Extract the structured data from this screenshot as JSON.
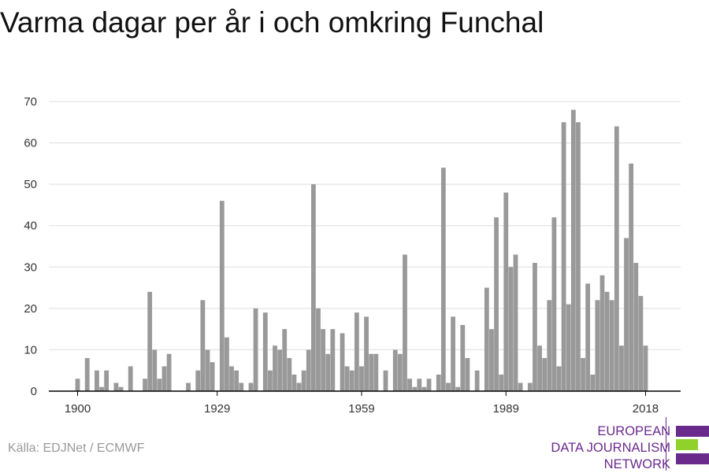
{
  "title": "Varma dagar per år i och omkring Funchal",
  "source": "Källa: EDJNet / ECMWF",
  "logo": {
    "lines": [
      "EUROPEAN",
      "DATA JOURNALISM",
      "NETWORK"
    ],
    "colors": {
      "purple": "#6a2a8c",
      "green": "#8ed22b"
    }
  },
  "colors": {
    "bar": "#999999",
    "grid": "#dddddd",
    "axis": "#000000",
    "tick_text": "#333333"
  },
  "chart_data": {
    "type": "bar",
    "title": "Varma dagar per år i och omkring Funchal",
    "xlabel": "",
    "ylabel": "",
    "ylim": [
      0,
      70
    ],
    "yticks": [
      0,
      10,
      20,
      30,
      40,
      50,
      60,
      70
    ],
    "xticks": [
      1900,
      1929,
      1959,
      1989,
      2018
    ],
    "grid": true,
    "x": [
      1900,
      1901,
      1902,
      1903,
      1904,
      1905,
      1906,
      1907,
      1908,
      1909,
      1910,
      1911,
      1912,
      1913,
      1914,
      1915,
      1916,
      1917,
      1918,
      1919,
      1920,
      1921,
      1922,
      1923,
      1924,
      1925,
      1926,
      1927,
      1928,
      1929,
      1930,
      1931,
      1932,
      1933,
      1934,
      1935,
      1936,
      1937,
      1938,
      1939,
      1940,
      1941,
      1942,
      1943,
      1944,
      1945,
      1946,
      1947,
      1948,
      1949,
      1950,
      1951,
      1952,
      1953,
      1954,
      1955,
      1956,
      1957,
      1958,
      1959,
      1960,
      1961,
      1962,
      1963,
      1964,
      1965,
      1966,
      1967,
      1968,
      1969,
      1970,
      1971,
      1972,
      1973,
      1974,
      1975,
      1976,
      1977,
      1978,
      1979,
      1980,
      1981,
      1982,
      1983,
      1984,
      1985,
      1986,
      1987,
      1988,
      1989,
      1990,
      1991,
      1992,
      1993,
      1994,
      1995,
      1996,
      1997,
      1998,
      1999,
      2000,
      2001,
      2002,
      2003,
      2004,
      2005,
      2006,
      2007,
      2008,
      2009,
      2010,
      2011,
      2012,
      2013,
      2014,
      2015,
      2016,
      2017,
      2018
    ],
    "values": [
      3,
      0,
      8,
      0,
      5,
      1,
      5,
      0,
      2,
      1,
      0,
      6,
      0,
      0,
      3,
      24,
      10,
      3,
      6,
      9,
      0,
      0,
      0,
      2,
      0,
      5,
      22,
      10,
      7,
      0,
      46,
      13,
      6,
      5,
      2,
      0,
      2,
      20,
      0,
      19,
      5,
      11,
      10,
      15,
      8,
      4,
      2,
      5,
      10,
      50,
      20,
      15,
      9,
      15,
      0,
      14,
      6,
      5,
      19,
      6,
      18,
      9,
      9,
      0,
      5,
      0,
      10,
      9,
      33,
      3,
      1,
      3,
      1,
      3,
      0,
      4,
      54,
      2,
      18,
      1,
      16,
      8,
      0,
      5,
      0,
      25,
      15,
      42,
      4,
      48,
      30,
      33,
      2,
      0,
      2,
      31,
      11,
      8,
      22,
      42,
      6,
      65,
      21,
      68,
      65,
      8,
      26,
      4,
      22,
      28,
      24,
      22,
      64,
      11,
      37,
      55,
      31,
      23,
      11
    ]
  }
}
